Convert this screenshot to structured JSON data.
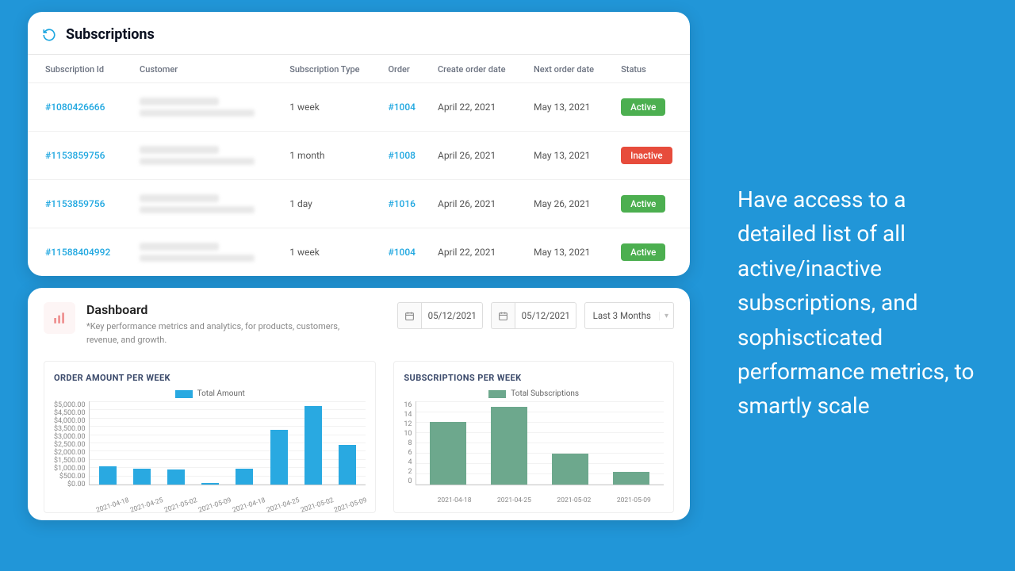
{
  "subscriptions": {
    "title": "Subscriptions",
    "columns": {
      "id": "Subscription Id",
      "customer": "Customer",
      "type": "Subscription Type",
      "order": "Order",
      "create": "Create order date",
      "next": "Next order date",
      "status": "Status"
    },
    "rows": [
      {
        "id": "#1080426666",
        "type": "1 week",
        "order": "#1004",
        "create": "April 22, 2021",
        "next": "May 13, 2021",
        "status": "Active"
      },
      {
        "id": "#1153859756",
        "type": "1 month",
        "order": "#1008",
        "create": "April 26, 2021",
        "next": "May 13, 2021",
        "status": "Inactive"
      },
      {
        "id": "#1153859756",
        "type": "1 day",
        "order": "#1016",
        "create": "April 26, 2021",
        "next": "May 26, 2021",
        "status": "Active"
      },
      {
        "id": "#11588404992",
        "type": "1 week",
        "order": "#1004",
        "create": "April 22, 2021",
        "next": "May 13, 2021",
        "status": "Active"
      }
    ],
    "status_colors": {
      "Active": "#4caf50",
      "Inactive": "#e74c3c"
    }
  },
  "dashboard": {
    "title": "Dashboard",
    "description": "*Key performance metrics and analytics, for products, customers, revenue, and growth.",
    "date_from": "05/12/2021",
    "date_to": "05/12/2021",
    "range_label": "Last 3 Months"
  },
  "chart1": {
    "type": "bar",
    "title": "ORDER AMOUNT PER WEEK",
    "legend": "Total Amount",
    "bar_color": "#29a9e1",
    "categories": [
      "2021-04-18",
      "2021-04-25",
      "2021-05-02",
      "2021-05-09",
      "2021-04-18",
      "2021-04-25",
      "2021-05-02",
      "2021-05-09"
    ],
    "values": [
      1100,
      950,
      900,
      100,
      950,
      3300,
      4700,
      2400
    ],
    "ylim": [
      0,
      5000
    ],
    "y_tick_labels": [
      "$5,000.00",
      "$4,500.00",
      "$4,000.00",
      "$3,500.00",
      "$3,000.00",
      "$2,500.00",
      "$2,000.00",
      "$1,500.00",
      "$1,000.00",
      "$500.00",
      "$0.00"
    ]
  },
  "chart2": {
    "type": "bar",
    "title": "SUBSCRIPTIONS PER WEEK",
    "legend": "Total Subscriptions",
    "bar_color": "#6da88d",
    "categories": [
      "2021-04-18",
      "2021-04-25",
      "2021-05-02",
      "2021-05-09"
    ],
    "values": [
      12,
      15,
      6,
      2.5
    ],
    "ylim": [
      0,
      16
    ],
    "y_tick_labels": [
      "16",
      "14",
      "12",
      "10",
      "8",
      "6",
      "4",
      "2",
      "0"
    ]
  },
  "marketing": {
    "text": "Have access to a detailed list of all active/inactive subscriptions, and sophiscticated performance  metrics, to smartly scale"
  },
  "colors": {
    "page_bg": "#2196d8",
    "link": "#1fa7e0",
    "chart_title": "#3b4a6b",
    "grid": "#f2f2f2"
  }
}
